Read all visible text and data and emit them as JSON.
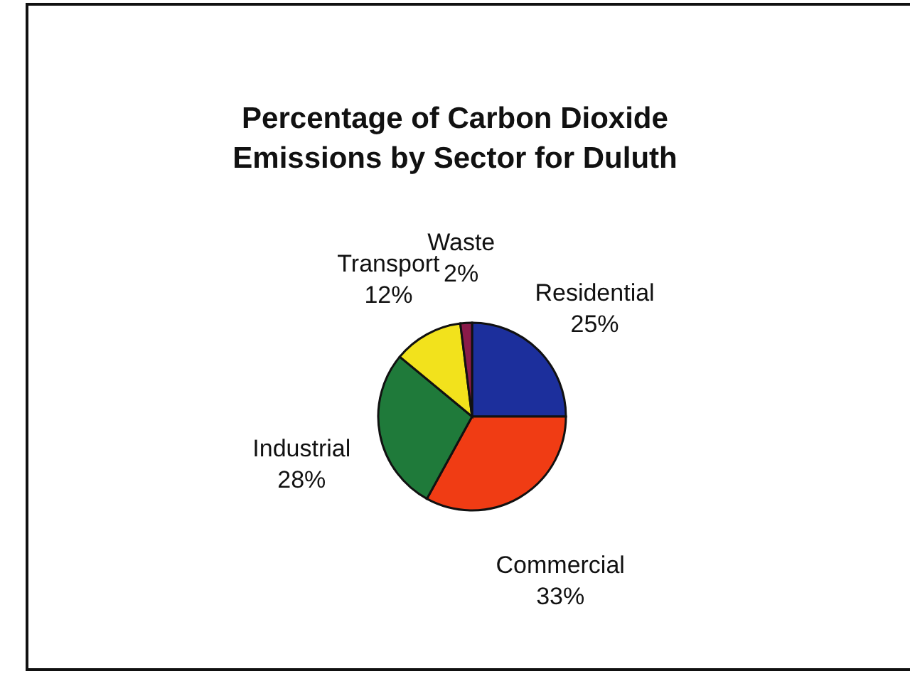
{
  "chart_data": {
    "type": "pie",
    "title": "Percentage of Carbon Dioxide Emissions by Sector for Duluth",
    "categories": [
      "Residential",
      "Commercial",
      "Industrial",
      "Transport",
      "Waste"
    ],
    "values": [
      25,
      33,
      28,
      12,
      2
    ],
    "value_labels": [
      "25%",
      "33%",
      "28%",
      "12%",
      "2%"
    ],
    "colors": [
      "#1c2f9c",
      "#f03c14",
      "#1f7a3a",
      "#f2e21c",
      "#8a1a4a"
    ],
    "legend": false
  }
}
